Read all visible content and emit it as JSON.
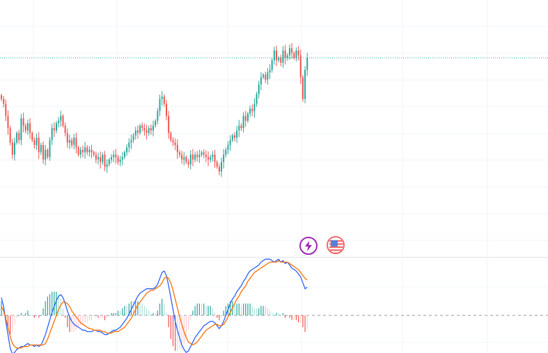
{
  "colors": {
    "up": "#26a69a",
    "down": "#ef5350",
    "macd": "#2962ff",
    "signal": "#ff6d00",
    "grid": "#f0f3fa",
    "price_line": "#26a69a",
    "event_flash": "#9c27b0",
    "event_country": "#f06a6a"
  },
  "events": {
    "flash_icon": "lightning-bolt-icon",
    "country_icon": "us-flag-icon"
  },
  "chart_data": [
    {
      "type": "candlestick",
      "grid": true,
      "y_range": [
        8,
        100
      ],
      "current_price": 79,
      "closes": [
        62,
        60,
        55,
        50,
        44,
        39,
        44,
        48,
        45,
        54,
        51,
        49,
        52,
        48,
        45,
        43,
        46,
        40,
        43,
        37,
        41,
        38,
        45,
        50,
        49,
        52,
        53,
        55,
        51,
        48,
        44,
        45,
        43,
        46,
        42,
        39,
        41,
        40,
        42,
        40,
        41,
        40,
        39,
        37,
        38,
        36,
        39,
        34,
        35,
        37,
        38,
        39,
        38,
        36,
        37,
        38,
        40,
        42,
        44,
        45,
        47,
        49,
        48,
        51,
        50,
        49,
        48,
        50,
        49,
        51,
        53,
        57,
        62,
        63,
        60,
        55,
        48,
        45,
        44,
        43,
        40,
        39,
        37,
        38,
        36,
        35,
        39,
        37,
        39,
        38,
        39,
        40,
        39,
        38,
        37,
        38,
        39,
        36,
        34,
        32,
        36,
        39,
        41,
        43,
        45,
        47,
        46,
        49,
        51,
        50,
        55,
        53,
        56,
        58,
        57,
        60,
        64,
        68,
        71,
        72,
        70,
        73,
        74,
        78,
        82,
        78,
        79,
        77,
        82,
        79,
        80,
        83,
        81,
        79,
        82,
        80,
        71,
        62,
        74,
        79
      ],
      "x_candles": 140,
      "start_x": 0,
      "bar_step": 3.16
    },
    {
      "type": "macd",
      "grid": true,
      "y_range": [
        -4,
        4
      ],
      "zero": 0,
      "macd": [
        1.2,
        0.6,
        -0.4,
        -1.3,
        -2.2,
        -2.6,
        -2.5,
        -2.3,
        -2.2,
        -2.1,
        -2.1,
        -2.0,
        -1.9,
        -2.0,
        -2.0,
        -2.1,
        -2.0,
        -2.1,
        -2.0,
        -1.7,
        -1.3,
        -0.8,
        -0.3,
        0.2,
        0.6,
        1.0,
        1.3,
        1.4,
        1.2,
        0.8,
        0.3,
        -0.1,
        -0.4,
        -0.6,
        -0.7,
        -0.8,
        -0.9,
        -1.0,
        -1.0,
        -1.1,
        -1.1,
        -1.1,
        -1.0,
        -1.0,
        -1.1,
        -1.1,
        -1.2,
        -1.3,
        -1.3,
        -1.2,
        -1.1,
        -1.0,
        -1.0,
        -0.9,
        -0.8,
        -0.6,
        -0.4,
        -0.2,
        0.1,
        0.4,
        0.7,
        1.0,
        1.3,
        1.5,
        1.6,
        1.7,
        1.8,
        1.8,
        1.8,
        1.8,
        1.9,
        2.1,
        2.5,
        2.9,
        3.0,
        2.7,
        2.0,
        1.2,
        0.4,
        -0.4,
        -1.0,
        -1.5,
        -2.0,
        -2.3,
        -2.5,
        -2.4,
        -2.1,
        -1.8,
        -1.5,
        -1.3,
        -1.1,
        -0.9,
        -0.7,
        -0.6,
        -0.5,
        -0.4,
        -0.4,
        -0.5,
        -0.7,
        -0.9,
        -0.7,
        -0.4,
        0.0,
        0.4,
        0.8,
        1.1,
        1.3,
        1.6,
        1.8,
        2.0,
        2.3,
        2.5,
        2.8,
        3.0,
        3.1,
        3.2,
        3.3,
        3.4,
        3.6,
        3.7,
        3.8,
        3.8,
        3.8,
        3.7,
        3.6,
        3.7,
        3.8,
        3.6,
        3.7,
        3.5,
        3.6,
        3.4,
        3.2,
        3.1,
        3.0,
        2.8,
        2.6,
        2.2,
        1.8,
        1.9
      ],
      "signal": [
        0.6,
        0.3,
        -0.2,
        -0.8,
        -1.4,
        -1.9,
        -2.1,
        -2.2,
        -2.2,
        -2.2,
        -2.1,
        -2.1,
        -2.1,
        -2.0,
        -2.0,
        -2.0,
        -2.0,
        -2.0,
        -2.0,
        -2.0,
        -1.9,
        -1.6,
        -1.2,
        -0.8,
        -0.4,
        0.0,
        0.4,
        0.7,
        0.9,
        0.9,
        0.8,
        0.6,
        0.3,
        0.1,
        -0.1,
        -0.3,
        -0.5,
        -0.6,
        -0.7,
        -0.8,
        -0.9,
        -0.9,
        -1.0,
        -1.0,
        -1.0,
        -1.0,
        -1.1,
        -1.1,
        -1.2,
        -1.2,
        -1.2,
        -1.1,
        -1.1,
        -1.1,
        -1.0,
        -0.9,
        -0.8,
        -0.6,
        -0.4,
        -0.2,
        0.1,
        0.4,
        0.7,
        0.9,
        1.1,
        1.3,
        1.5,
        1.6,
        1.7,
        1.7,
        1.8,
        1.9,
        2.0,
        2.2,
        2.5,
        2.6,
        2.5,
        2.2,
        1.7,
        1.1,
        0.5,
        -0.1,
        -0.6,
        -1.1,
        -1.5,
        -1.8,
        -1.9,
        -2.0,
        -1.9,
        -1.8,
        -1.6,
        -1.4,
        -1.2,
        -1.0,
        -0.9,
        -0.8,
        -0.7,
        -0.6,
        -0.6,
        -0.7,
        -0.7,
        -0.6,
        -0.4,
        -0.1,
        0.2,
        0.5,
        0.8,
        1.1,
        1.3,
        1.6,
        1.8,
        2.0,
        2.3,
        2.5,
        2.7,
        2.9,
        3.0,
        3.1,
        3.2,
        3.3,
        3.4,
        3.5,
        3.6,
        3.6,
        3.6,
        3.6,
        3.7,
        3.6,
        3.6,
        3.6,
        3.6,
        3.5,
        3.4,
        3.3,
        3.2,
        3.1,
        2.9,
        2.7,
        2.5,
        2.4
      ]
    }
  ]
}
